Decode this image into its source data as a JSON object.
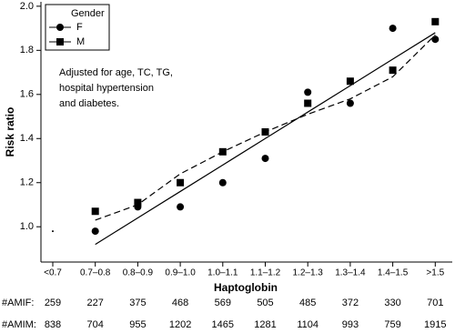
{
  "chart_data": {
    "type": "scatter",
    "x_label": "Haptoglobin",
    "y_label": "Risk ratio",
    "categories": [
      "<0.7",
      "0.7–0.8",
      "0.8–0.9",
      "0.9–1.0",
      "1.0–1.1",
      "1.1–1.2",
      "1.2–1.3",
      "1.3–1.4",
      "1.4–1.5",
      ">1.5"
    ],
    "reference_value": 0.98,
    "series": [
      {
        "name": "F",
        "marker": "circle",
        "color": "#000000",
        "values": [
          null,
          0.98,
          1.09,
          1.09,
          1.2,
          1.31,
          1.61,
          1.56,
          1.9,
          1.85
        ]
      },
      {
        "name": "M",
        "marker": "square",
        "color": "#000000",
        "values": [
          null,
          1.07,
          1.11,
          1.2,
          1.34,
          1.43,
          1.56,
          1.66,
          1.71,
          1.93
        ]
      }
    ],
    "fit_lines": [
      {
        "dashed": false,
        "values": [
          null,
          0.92,
          1.04,
          1.16,
          1.28,
          1.4,
          1.52,
          1.64,
          1.76,
          1.88
        ]
      },
      {
        "dashed": true,
        "values": [
          null,
          1.03,
          1.1,
          1.24,
          1.34,
          1.43,
          1.51,
          1.58,
          1.68,
          1.87
        ]
      }
    ],
    "legend_title": "Gender",
    "annotation": [
      "Adjusted for age, TC, TG,",
      "hospital hypertension",
      "and diabetes."
    ],
    "ylim": [
      0.84,
      2.02
    ],
    "yticks": [
      {
        "value": 1,
        "label": "1.0"
      },
      1.2,
      1.4,
      1.6,
      1.8,
      {
        "value": 2,
        "label": "2.0"
      }
    ],
    "table": {
      "rows": [
        {
          "label": "#AMIF:",
          "values": [
            "259",
            "227",
            "375",
            "468",
            "569",
            "505",
            "485",
            "372",
            "330",
            "701"
          ]
        },
        {
          "label": "#AMIM:",
          "values": [
            "838",
            "704",
            "955",
            "1202",
            "1465",
            "1281",
            "1104",
            "993",
            "759",
            "1915"
          ]
        }
      ]
    }
  }
}
